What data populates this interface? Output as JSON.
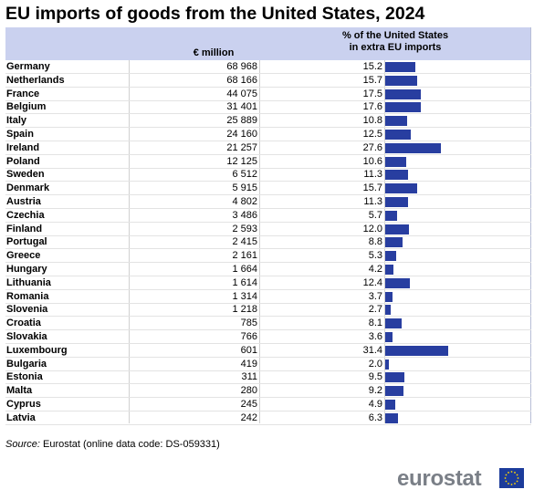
{
  "title": "EU imports of goods from the United States, 2024",
  "columns": {
    "million": "€ million",
    "share_line1": "% of the United States",
    "share_line2": "in extra EU imports"
  },
  "chart_data": {
    "type": "table",
    "rows": [
      {
        "country": "Germany",
        "million": "68 968",
        "share": 15.2
      },
      {
        "country": "Netherlands",
        "million": "68 166",
        "share": 15.7
      },
      {
        "country": "France",
        "million": "44 075",
        "share": 17.5
      },
      {
        "country": "Belgium",
        "million": "31 401",
        "share": 17.6
      },
      {
        "country": "Italy",
        "million": "25 889",
        "share": 10.8
      },
      {
        "country": "Spain",
        "million": "24 160",
        "share": 12.5
      },
      {
        "country": "Ireland",
        "million": "21 257",
        "share": 27.6
      },
      {
        "country": "Poland",
        "million": "12 125",
        "share": 10.6
      },
      {
        "country": "Sweden",
        "million": "6 512",
        "share": 11.3
      },
      {
        "country": "Denmark",
        "million": "5 915",
        "share": 15.7
      },
      {
        "country": "Austria",
        "million": "4 802",
        "share": 11.3
      },
      {
        "country": "Czechia",
        "million": "3 486",
        "share": 5.7
      },
      {
        "country": "Finland",
        "million": "2 593",
        "share": 12.0
      },
      {
        "country": "Portugal",
        "million": "2 415",
        "share": 8.8
      },
      {
        "country": "Greece",
        "million": "2 161",
        "share": 5.3
      },
      {
        "country": "Hungary",
        "million": "1 664",
        "share": 4.2
      },
      {
        "country": "Lithuania",
        "million": "1 614",
        "share": 12.4
      },
      {
        "country": "Romania",
        "million": "1 314",
        "share": 3.7
      },
      {
        "country": "Slovenia",
        "million": "1 218",
        "share": 2.7
      },
      {
        "country": "Croatia",
        "million": "785",
        "share": 8.1
      },
      {
        "country": "Slovakia",
        "million": "766",
        "share": 3.6
      },
      {
        "country": "Luxembourg",
        "million": "601",
        "share": 31.4
      },
      {
        "country": "Bulgaria",
        "million": "419",
        "share": 2.0
      },
      {
        "country": "Estonia",
        "million": "311",
        "share": 9.5
      },
      {
        "country": "Malta",
        "million": "280",
        "share": 9.2
      },
      {
        "country": "Cyprus",
        "million": "245",
        "share": 4.9
      },
      {
        "country": "Latvia",
        "million": "242",
        "share": 6.3
      }
    ],
    "bar_color": "#283ea0",
    "header_color": "#cad1ef"
  },
  "source": {
    "label": "Source:",
    "text": "Eurostat (online data code: DS-059331)"
  },
  "logo": {
    "text": "eurostat"
  }
}
